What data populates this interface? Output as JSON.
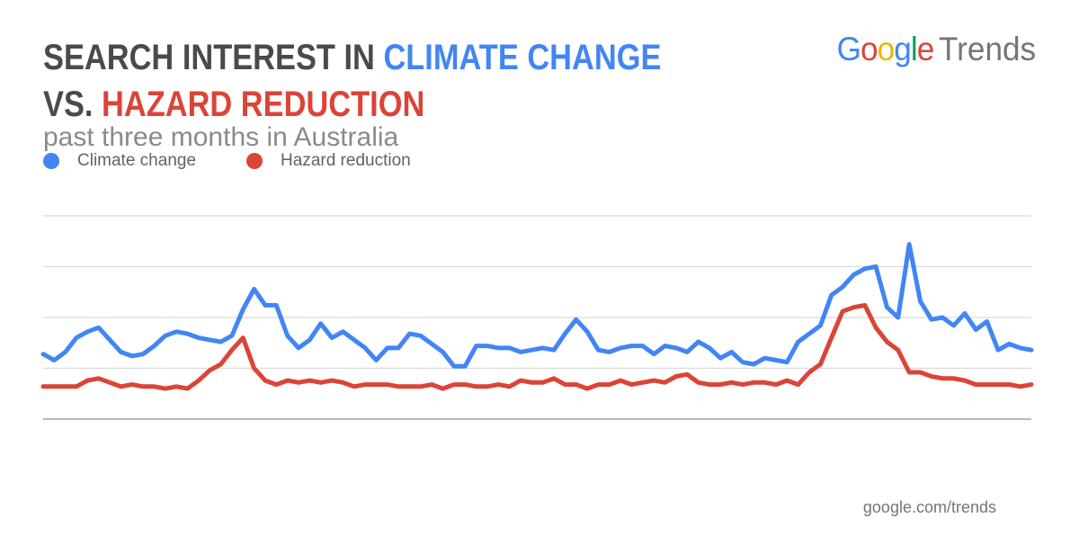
{
  "header": {
    "title_prefix": "SEARCH INTEREST IN",
    "title_term1": "CLIMATE CHANGE",
    "title_vs": "VS.",
    "title_term2": "HAZARD REDUCTION",
    "subtitle": "past three months in Australia"
  },
  "logo": {
    "letters": [
      "G",
      "o",
      "o",
      "g",
      "l",
      "e"
    ],
    "letter_colors": [
      "#4285f4",
      "#db4437",
      "#f4b400",
      "#4285f4",
      "#0f9d58",
      "#db4437"
    ],
    "product": "Trends"
  },
  "footer": {
    "source": "google.com/trends"
  },
  "colors": {
    "series1": "#4285f4",
    "series2": "#db4437",
    "grid": "#dadada",
    "axis": "#a0a3b0"
  },
  "chart_data": {
    "type": "line",
    "title": "SEARCH INTEREST IN CLIMATE CHANGE VS. HAZARD REDUCTION",
    "subtitle": "past three months in Australia",
    "xlabel": "",
    "ylabel": "",
    "ylim": [
      0,
      100
    ],
    "gridlines": [
      25,
      50,
      75,
      100
    ],
    "legend_position": "top-left",
    "x": [
      0,
      1,
      2,
      3,
      4,
      5,
      6,
      7,
      8,
      9,
      10,
      11,
      12,
      13,
      14,
      15,
      16,
      17,
      18,
      19,
      20,
      21,
      22,
      23,
      24,
      25,
      26,
      27,
      28,
      29,
      30,
      31,
      32,
      33,
      34,
      35,
      36,
      37,
      38,
      39,
      40,
      41,
      42,
      43,
      44,
      45,
      46,
      47,
      48,
      49,
      50,
      51,
      52,
      53,
      54,
      55,
      56,
      57,
      58,
      59,
      60,
      61,
      62,
      63,
      64,
      65,
      66,
      67,
      68,
      69,
      70,
      71,
      72,
      73,
      74,
      75,
      76,
      77,
      78,
      79,
      80,
      81,
      82,
      83,
      84,
      85,
      86,
      87,
      88,
      89
    ],
    "series": [
      {
        "name": "Climate change",
        "values": [
          32,
          29,
          33,
          40,
          43,
          45,
          39,
          33,
          31,
          32,
          36,
          41,
          43,
          42,
          40,
          39,
          38,
          41,
          54,
          64,
          56,
          56,
          41,
          35,
          39,
          47,
          40,
          43,
          39,
          35,
          29,
          35,
          35,
          42,
          41,
          37,
          33,
          26,
          26,
          36,
          36,
          35,
          35,
          33,
          34,
          35,
          34,
          42,
          49,
          43,
          34,
          33,
          35,
          36,
          36,
          32,
          36,
          35,
          33,
          38,
          35,
          30,
          33,
          28,
          27,
          30,
          29,
          28,
          38,
          42,
          46,
          61,
          65,
          71,
          74,
          75,
          55,
          50,
          86,
          58,
          49,
          50,
          46,
          52,
          44,
          48,
          34,
          37,
          35,
          34
        ],
        "color": "#4285f4"
      },
      {
        "name": "Hazard reduction",
        "values": [
          16,
          16,
          16,
          16,
          19,
          20,
          18,
          16,
          17,
          16,
          16,
          15,
          16,
          15,
          19,
          24,
          27,
          34,
          40,
          25,
          19,
          17,
          19,
          18,
          19,
          18,
          19,
          18,
          16,
          17,
          17,
          17,
          16,
          16,
          16,
          17,
          15,
          17,
          17,
          16,
          16,
          17,
          16,
          19,
          18,
          18,
          20,
          17,
          17,
          15,
          17,
          17,
          19,
          17,
          18,
          19,
          18,
          21,
          22,
          18,
          17,
          17,
          18,
          17,
          18,
          18,
          17,
          19,
          17,
          23,
          27,
          40,
          53,
          55,
          56,
          45,
          38,
          34,
          23,
          23,
          21,
          20,
          20,
          19,
          17,
          17,
          17,
          17,
          16,
          17
        ],
        "color": "#db4437"
      }
    ]
  }
}
